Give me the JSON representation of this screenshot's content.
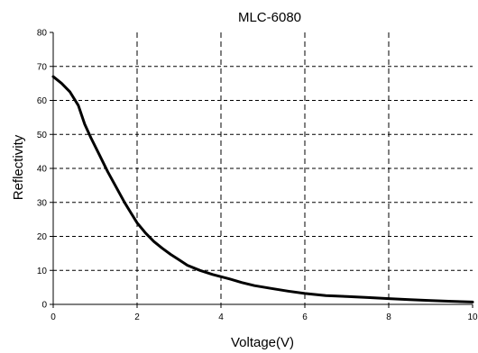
{
  "chart_data": {
    "type": "line",
    "title": "MLC-6080",
    "xlabel": "Voltage(V)",
    "ylabel": "Reflectivity",
    "xlim": [
      0,
      10
    ],
    "ylim": [
      0,
      80
    ],
    "xticks": [
      "0",
      "2",
      "4",
      "6",
      "8",
      "10"
    ],
    "yticks": [
      "0",
      "10",
      "20",
      "30",
      "40",
      "50",
      "60",
      "70",
      "80"
    ],
    "grid": true,
    "grid_style": "dashed",
    "legend": "none",
    "series": [
      {
        "color": "#000000",
        "x": [
          0,
          0.2,
          0.4,
          0.6,
          0.75,
          0.9,
          1.1,
          1.3,
          1.5,
          1.7,
          1.85,
          2.0,
          2.2,
          2.4,
          2.6,
          2.8,
          3.0,
          3.2,
          3.5,
          3.8,
          4.2,
          4.5,
          4.8,
          5.2,
          5.6,
          6.0,
          6.5,
          7.0,
          7.5,
          8.0,
          8.5,
          9.0,
          9.5,
          10.0
        ],
        "y": [
          67,
          65,
          62.5,
          58.5,
          53,
          49,
          44,
          39,
          34.5,
          30,
          27,
          24,
          21,
          18.5,
          16.5,
          14.7,
          13.1,
          11.5,
          10,
          8.8,
          7.5,
          6.4,
          5.5,
          4.7,
          3.9,
          3.2,
          2.6,
          2.3,
          2.0,
          1.7,
          1.4,
          1.1,
          0.9,
          0.7
        ]
      }
    ]
  }
}
